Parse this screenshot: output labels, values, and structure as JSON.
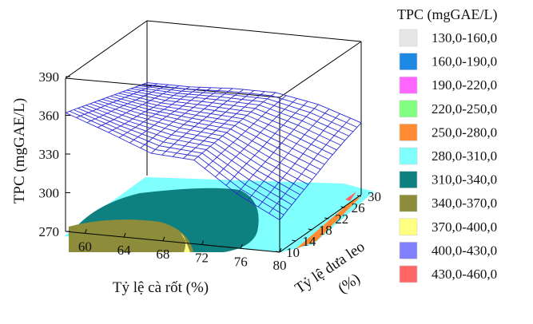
{
  "chart_data": {
    "type": "surface3d",
    "zlabel": "TPC (mgGAE/L)",
    "xlabel": "Tỷ lệ cà rốt (%)",
    "ylabel_line1": "Tỷ lệ dưa leo",
    "ylabel_line2": "(%)",
    "x_ticks": [
      "60",
      "64",
      "68",
      "72",
      "76",
      "80"
    ],
    "y_ticks": [
      "10",
      "14",
      "18",
      "22",
      "26",
      "30"
    ],
    "z_ticks": [
      "270",
      "300",
      "330",
      "360",
      "390"
    ],
    "xlim": [
      58,
      80
    ],
    "ylim": [
      10,
      30
    ],
    "zlim": [
      270,
      390
    ],
    "z_grid": [
      [
        362,
        350,
        337,
        335,
        312,
        295
      ],
      [
        358,
        348,
        340,
        337,
        318,
        302
      ],
      [
        354,
        347,
        342,
        339,
        323,
        309
      ],
      [
        350,
        345,
        343,
        341,
        329,
        316
      ],
      [
        346,
        344,
        344,
        343,
        334,
        322
      ],
      [
        342,
        342,
        344,
        344,
        338,
        327
      ]
    ],
    "grid_x": [
      58,
      62.4,
      66.8,
      71.2,
      75.6,
      80
    ],
    "grid_y": [
      10,
      14,
      18,
      22,
      26,
      30
    ],
    "legend": {
      "title": "TPC (mgGAE/L)",
      "entries": [
        {
          "label": "130,0-160,0",
          "color": "#e6e6e6"
        },
        {
          "label": "160,0-190,0",
          "color": "#1e88e5"
        },
        {
          "label": "190,0-220,0",
          "color": "#ff66ff"
        },
        {
          "label": "220,0-250,0",
          "color": "#80ff80"
        },
        {
          "label": "250,0-280,0",
          "color": "#ff8c33"
        },
        {
          "label": "280,0-310,0",
          "color": "#80ffff"
        },
        {
          "label": "310,0-340,0",
          "color": "#0f8080"
        },
        {
          "label": "340,0-370,0",
          "color": "#8c8c3a"
        },
        {
          "label": "370,0-400,0",
          "color": "#ffff80"
        },
        {
          "label": "400,0-430,0",
          "color": "#8080ff"
        },
        {
          "label": "430,0-460,0",
          "color": "#ff6666"
        }
      ]
    }
  }
}
